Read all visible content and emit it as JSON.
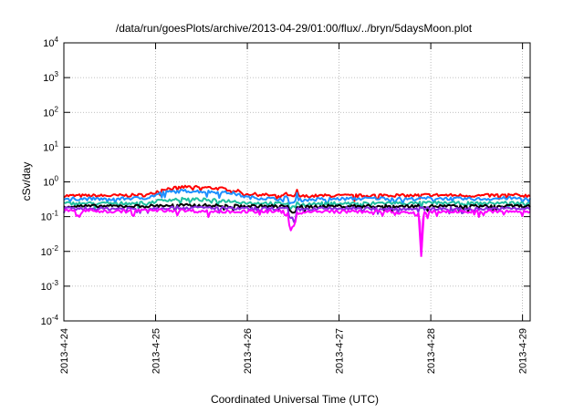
{
  "chart_data": {
    "type": "line",
    "title": "/data/run/goesPlots/archive/2013-04-29/01:00/flux/../bryn/5daysMoon.plot",
    "xlabel": "Coordinated Universal Time (UTC)",
    "ylabel": "cSv/day",
    "yscale": "log",
    "ylim": [
      0.0001,
      10000
    ],
    "y_ticks": [
      {
        "value": 0.0001,
        "base": "10",
        "exp": "-4"
      },
      {
        "value": 0.001,
        "base": "10",
        "exp": "-3"
      },
      {
        "value": 0.01,
        "base": "10",
        "exp": "-2"
      },
      {
        "value": 0.1,
        "base": "10",
        "exp": "-1"
      },
      {
        "value": 1,
        "base": "10",
        "exp": "0"
      },
      {
        "value": 10,
        "base": "10",
        "exp": "1"
      },
      {
        "value": 100,
        "base": "10",
        "exp": "2"
      },
      {
        "value": 1000,
        "base": "10",
        "exp": "3"
      },
      {
        "value": 10000,
        "base": "10",
        "exp": "4"
      }
    ],
    "xlim": [
      "2013-04-24T00:00",
      "2013-04-29T02:00"
    ],
    "x_ticks": [
      "2013-4-24",
      "2013-4-25",
      "2013-4-26",
      "2013-4-27",
      "2013-4-28",
      "2013-4-29"
    ],
    "grid": true,
    "legend": "none",
    "series": [
      {
        "color": "#ff0000",
        "points": [
          [
            "2013-04-24T00:00",
            0.4
          ],
          [
            "2013-04-24T12:00",
            0.4
          ],
          [
            "2013-04-24T22:00",
            0.42
          ],
          [
            "2013-04-25T02:00",
            0.62
          ],
          [
            "2013-04-25T08:00",
            0.72
          ],
          [
            "2013-04-25T14:00",
            0.68
          ],
          [
            "2013-04-25T20:00",
            0.6
          ],
          [
            "2013-04-26T00:00",
            0.45
          ],
          [
            "2013-04-26T08:00",
            0.4
          ],
          [
            "2013-04-26T10:30",
            0.45
          ],
          [
            "2013-04-26T11:00",
            0.38
          ],
          [
            "2013-04-26T12:30",
            0.38
          ],
          [
            "2013-04-26T13:00",
            0.55
          ],
          [
            "2013-04-26T13:30",
            0.38
          ],
          [
            "2013-04-26T20:00",
            0.4
          ],
          [
            "2013-04-27T06:00",
            0.4
          ],
          [
            "2013-04-27T12:00",
            0.42
          ],
          [
            "2013-04-27T18:00",
            0.4
          ],
          [
            "2013-04-28T00:00",
            0.42
          ],
          [
            "2013-04-28T12:00",
            0.4
          ],
          [
            "2013-04-28T20:00",
            0.42
          ],
          [
            "2013-04-29T02:00",
            0.4
          ]
        ]
      },
      {
        "color": "#1e90ff",
        "points": [
          [
            "2013-04-24T00:00",
            0.33
          ],
          [
            "2013-04-24T12:00",
            0.32
          ],
          [
            "2013-04-24T22:00",
            0.35
          ],
          [
            "2013-04-25T02:00",
            0.5
          ],
          [
            "2013-04-25T08:00",
            0.55
          ],
          [
            "2013-04-25T14:00",
            0.52
          ],
          [
            "2013-04-25T20:00",
            0.48
          ],
          [
            "2013-04-26T00:00",
            0.36
          ],
          [
            "2013-04-26T08:00",
            0.32
          ],
          [
            "2013-04-26T10:30",
            0.36
          ],
          [
            "2013-04-26T11:00",
            0.25
          ],
          [
            "2013-04-26T12:30",
            0.25
          ],
          [
            "2013-04-26T13:00",
            0.45
          ],
          [
            "2013-04-26T13:30",
            0.3
          ],
          [
            "2013-04-26T20:00",
            0.32
          ],
          [
            "2013-04-27T06:00",
            0.33
          ],
          [
            "2013-04-27T12:00",
            0.34
          ],
          [
            "2013-04-27T18:00",
            0.32
          ],
          [
            "2013-04-28T00:00",
            0.34
          ],
          [
            "2013-04-28T12:00",
            0.32
          ],
          [
            "2013-04-28T20:00",
            0.34
          ],
          [
            "2013-04-29T02:00",
            0.33
          ]
        ]
      },
      {
        "color": "#20c0a0",
        "points": [
          [
            "2013-04-24T00:00",
            0.24
          ],
          [
            "2013-04-24T12:00",
            0.24
          ],
          [
            "2013-04-24T22:00",
            0.25
          ],
          [
            "2013-04-25T02:00",
            0.3
          ],
          [
            "2013-04-25T08:00",
            0.32
          ],
          [
            "2013-04-25T14:00",
            0.3
          ],
          [
            "2013-04-25T20:00",
            0.28
          ],
          [
            "2013-04-26T00:00",
            0.25
          ],
          [
            "2013-04-26T08:00",
            0.24
          ],
          [
            "2013-04-26T10:30",
            0.24
          ],
          [
            "2013-04-26T11:00",
            0.18
          ],
          [
            "2013-04-26T12:30",
            0.18
          ],
          [
            "2013-04-26T13:00",
            0.28
          ],
          [
            "2013-04-26T13:30",
            0.22
          ],
          [
            "2013-04-26T20:00",
            0.24
          ],
          [
            "2013-04-27T06:00",
            0.24
          ],
          [
            "2013-04-27T12:00",
            0.25
          ],
          [
            "2013-04-27T18:00",
            0.24
          ],
          [
            "2013-04-28T00:00",
            0.25
          ],
          [
            "2013-04-28T12:00",
            0.24
          ],
          [
            "2013-04-28T20:00",
            0.25
          ],
          [
            "2013-04-29T02:00",
            0.24
          ]
        ]
      },
      {
        "color": "#000000",
        "points": [
          [
            "2013-04-24T00:00",
            0.2
          ],
          [
            "2013-04-24T12:00",
            0.2
          ],
          [
            "2013-04-24T22:00",
            0.2
          ],
          [
            "2013-04-25T02:00",
            0.21
          ],
          [
            "2013-04-25T08:00",
            0.21
          ],
          [
            "2013-04-25T14:00",
            0.21
          ],
          [
            "2013-04-25T20:00",
            0.2
          ],
          [
            "2013-04-26T00:00",
            0.2
          ],
          [
            "2013-04-26T08:00",
            0.2
          ],
          [
            "2013-04-26T10:30",
            0.2
          ],
          [
            "2013-04-26T11:00",
            0.14
          ],
          [
            "2013-04-26T12:30",
            0.14
          ],
          [
            "2013-04-26T13:00",
            0.2
          ],
          [
            "2013-04-26T13:30",
            0.19
          ],
          [
            "2013-04-26T20:00",
            0.2
          ],
          [
            "2013-04-27T06:00",
            0.2
          ],
          [
            "2013-04-27T12:00",
            0.2
          ],
          [
            "2013-04-27T18:00",
            0.2
          ],
          [
            "2013-04-28T00:00",
            0.2
          ],
          [
            "2013-04-28T12:00",
            0.2
          ],
          [
            "2013-04-28T20:00",
            0.2
          ],
          [
            "2013-04-29T02:00",
            0.2
          ]
        ]
      },
      {
        "color": "#8a2be2",
        "points": [
          [
            "2013-04-24T00:00",
            0.17
          ],
          [
            "2013-04-24T12:00",
            0.17
          ],
          [
            "2013-04-24T22:00",
            0.17
          ],
          [
            "2013-04-25T02:00",
            0.18
          ],
          [
            "2013-04-25T08:00",
            0.18
          ],
          [
            "2013-04-25T14:00",
            0.18
          ],
          [
            "2013-04-25T20:00",
            0.17
          ],
          [
            "2013-04-26T00:00",
            0.17
          ],
          [
            "2013-04-26T08:00",
            0.17
          ],
          [
            "2013-04-26T10:30",
            0.17
          ],
          [
            "2013-04-26T11:00",
            0.09
          ],
          [
            "2013-04-26T12:30",
            0.09
          ],
          [
            "2013-04-26T13:00",
            0.17
          ],
          [
            "2013-04-26T13:30",
            0.16
          ],
          [
            "2013-04-26T20:00",
            0.17
          ],
          [
            "2013-04-27T06:00",
            0.17
          ],
          [
            "2013-04-27T12:00",
            0.17
          ],
          [
            "2013-04-27T18:00",
            0.17
          ],
          [
            "2013-04-28T00:00",
            0.17
          ],
          [
            "2013-04-28T12:00",
            0.17
          ],
          [
            "2013-04-28T20:00",
            0.17
          ],
          [
            "2013-04-29T02:00",
            0.17
          ]
        ]
      },
      {
        "color": "#ff00ff",
        "points": [
          [
            "2013-04-24T00:00",
            0.15
          ],
          [
            "2013-04-24T03:00",
            0.15
          ],
          [
            "2013-04-24T04:00",
            0.1
          ],
          [
            "2013-04-24T05:00",
            0.15
          ],
          [
            "2013-04-24T12:00",
            0.14
          ],
          [
            "2013-04-24T22:00",
            0.15
          ],
          [
            "2013-04-25T02:00",
            0.15
          ],
          [
            "2013-04-25T08:00",
            0.15
          ],
          [
            "2013-04-25T14:00",
            0.14
          ],
          [
            "2013-04-25T20:00",
            0.14
          ],
          [
            "2013-04-26T00:00",
            0.14
          ],
          [
            "2013-04-26T08:00",
            0.14
          ],
          [
            "2013-04-26T10:30",
            0.14
          ],
          [
            "2013-04-26T11:00",
            0.055
          ],
          [
            "2013-04-26T12:00",
            0.055
          ],
          [
            "2013-04-26T12:30",
            0.06
          ],
          [
            "2013-04-26T13:00",
            0.13
          ],
          [
            "2013-04-26T20:00",
            0.14
          ],
          [
            "2013-04-27T06:00",
            0.14
          ],
          [
            "2013-04-27T12:00",
            0.14
          ],
          [
            "2013-04-27T18:00",
            0.13
          ],
          [
            "2013-04-27T21:00",
            0.13
          ],
          [
            "2013-04-27T21:30",
            0.007
          ],
          [
            "2013-04-27T22:00",
            0.12
          ],
          [
            "2013-04-28T00:00",
            0.14
          ],
          [
            "2013-04-28T12:00",
            0.14
          ],
          [
            "2013-04-28T20:00",
            0.14
          ],
          [
            "2013-04-29T02:00",
            0.14
          ]
        ]
      }
    ]
  }
}
